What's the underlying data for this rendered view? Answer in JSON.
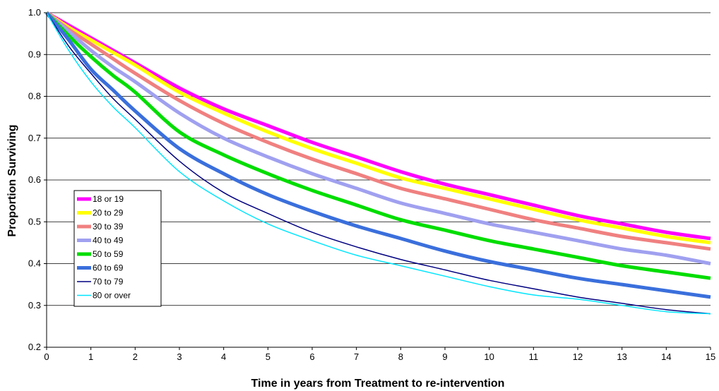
{
  "chart_data": {
    "type": "line",
    "title": "",
    "xlabel": "Time in years from Treatment to re-intervention",
    "ylabel": "Proportion Surviving",
    "xlim": [
      0,
      15
    ],
    "ylim": [
      0.2,
      1.0
    ],
    "xticks": [
      0,
      1,
      2,
      3,
      4,
      5,
      6,
      7,
      8,
      9,
      10,
      11,
      12,
      13,
      14,
      15
    ],
    "yticks": [
      0.2,
      0.3,
      0.4,
      0.5,
      0.6,
      0.7,
      0.8,
      0.9,
      1.0
    ],
    "ytick_labels": [
      "0.2",
      "0.3",
      "0.4",
      "0.5",
      "0.6",
      "0.7",
      "0.8",
      "0.9",
      "1.0"
    ],
    "grid": "horizontal",
    "legend_position": "left-lower",
    "series": [
      {
        "name": "18 or 19",
        "color": "#ff00ff",
        "x": [
          0,
          0.5,
          1,
          1.5,
          2,
          3,
          4,
          5,
          6,
          7,
          8,
          9,
          10,
          11,
          12,
          13,
          14,
          15
        ],
        "y": [
          1.0,
          0.97,
          0.94,
          0.91,
          0.88,
          0.82,
          0.77,
          0.73,
          0.69,
          0.655,
          0.62,
          0.59,
          0.565,
          0.54,
          0.515,
          0.495,
          0.475,
          0.46
        ]
      },
      {
        "name": "20 to 29",
        "color": "#ffff00",
        "x": [
          0,
          0.5,
          1,
          1.5,
          2,
          3,
          4,
          5,
          6,
          7,
          8,
          9,
          10,
          11,
          12,
          13,
          14,
          15
        ],
        "y": [
          1.0,
          0.965,
          0.935,
          0.905,
          0.875,
          0.81,
          0.76,
          0.715,
          0.675,
          0.64,
          0.605,
          0.58,
          0.555,
          0.53,
          0.505,
          0.485,
          0.465,
          0.45
        ]
      },
      {
        "name": "30 to 39",
        "color": "#f08080",
        "x": [
          0,
          0.5,
          1,
          1.5,
          2,
          3,
          4,
          5,
          6,
          7,
          8,
          9,
          10,
          11,
          12,
          13,
          14,
          15
        ],
        "y": [
          1.0,
          0.96,
          0.925,
          0.89,
          0.855,
          0.79,
          0.735,
          0.69,
          0.65,
          0.615,
          0.58,
          0.555,
          0.53,
          0.505,
          0.485,
          0.465,
          0.45,
          0.435
        ]
      },
      {
        "name": "40 to 49",
        "color": "#a0a0f0",
        "x": [
          0,
          0.5,
          1,
          1.5,
          2,
          3,
          4,
          5,
          6,
          7,
          8,
          9,
          10,
          11,
          12,
          13,
          14,
          15
        ],
        "y": [
          1.0,
          0.955,
          0.91,
          0.87,
          0.835,
          0.76,
          0.7,
          0.655,
          0.615,
          0.58,
          0.545,
          0.52,
          0.495,
          0.475,
          0.455,
          0.435,
          0.42,
          0.4
        ]
      },
      {
        "name": "50 to 59",
        "color": "#00dd00",
        "x": [
          0,
          0.5,
          1,
          1.5,
          2,
          3,
          4,
          5,
          6,
          7,
          8,
          9,
          10,
          11,
          12,
          13,
          14,
          15
        ],
        "y": [
          1.0,
          0.945,
          0.895,
          0.85,
          0.81,
          0.715,
          0.66,
          0.615,
          0.575,
          0.54,
          0.505,
          0.48,
          0.455,
          0.435,
          0.415,
          0.395,
          0.38,
          0.365
        ]
      },
      {
        "name": "60 to 69",
        "color": "#3a6fdc",
        "x": [
          0,
          0.5,
          1,
          1.5,
          2,
          3,
          4,
          5,
          6,
          7,
          8,
          9,
          10,
          11,
          12,
          13,
          14,
          15
        ],
        "y": [
          1.0,
          0.935,
          0.865,
          0.815,
          0.765,
          0.675,
          0.615,
          0.565,
          0.525,
          0.49,
          0.46,
          0.43,
          0.405,
          0.385,
          0.365,
          0.35,
          0.335,
          0.32
        ]
      },
      {
        "name": "70 to 79",
        "color": "#000080",
        "x": [
          0,
          0.5,
          1,
          1.5,
          2,
          3,
          4,
          5,
          6,
          7,
          8,
          9,
          10,
          11,
          12,
          13,
          14,
          15
        ],
        "y": [
          1.0,
          0.92,
          0.855,
          0.795,
          0.745,
          0.645,
          0.57,
          0.52,
          0.475,
          0.44,
          0.41,
          0.385,
          0.36,
          0.34,
          0.32,
          0.305,
          0.29,
          0.28
        ]
      },
      {
        "name": "80 or over",
        "color": "#00e5ff",
        "x": [
          0,
          0.5,
          1,
          1.5,
          2,
          3,
          4,
          5,
          6,
          7,
          8,
          9,
          10,
          11,
          12,
          13,
          14,
          15
        ],
        "y": [
          1.0,
          0.91,
          0.835,
          0.775,
          0.725,
          0.62,
          0.55,
          0.495,
          0.455,
          0.42,
          0.395,
          0.37,
          0.345,
          0.325,
          0.315,
          0.3,
          0.285,
          0.28
        ]
      }
    ]
  }
}
